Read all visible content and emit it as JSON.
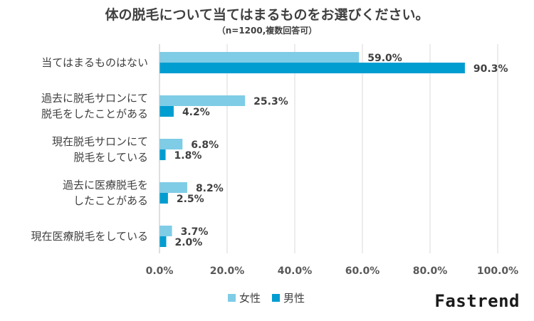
{
  "chart_data": {
    "type": "bar",
    "orientation": "horizontal",
    "title": "体の脱毛について当てはまるものをお選びください。",
    "subtitle": "（n=1200,複数回答可）",
    "categories": [
      [
        "当てはまるものはない"
      ],
      [
        "過去に脱毛サロンにて",
        "脱毛をしたことがある"
      ],
      [
        "現在脱毛サロンにて",
        "脱毛をしている"
      ],
      [
        "過去に医療脱毛を",
        "したことがある"
      ],
      [
        "現在医療脱毛をしている"
      ]
    ],
    "series": [
      {
        "name": "女性",
        "color": "#7FCCE6",
        "values": [
          59.0,
          25.3,
          6.8,
          8.2,
          3.7
        ],
        "labels": [
          "59.0%",
          "25.3%",
          "6.8%",
          "8.2%",
          "3.7%"
        ]
      },
      {
        "name": "男性",
        "color": "#009DD1",
        "values": [
          90.3,
          4.2,
          1.8,
          2.5,
          2.0
        ],
        "labels": [
          "90.3%",
          "4.2%",
          "1.8%",
          "2.5%",
          "2.0%"
        ]
      }
    ],
    "xlim": [
      0,
      100
    ],
    "xticks": [
      "0.0%",
      "20.0%",
      "40.0%",
      "60.0%",
      "80.0%",
      "100.0%"
    ],
    "grid": true,
    "legend": "bottom"
  },
  "brand": "Fastrend"
}
